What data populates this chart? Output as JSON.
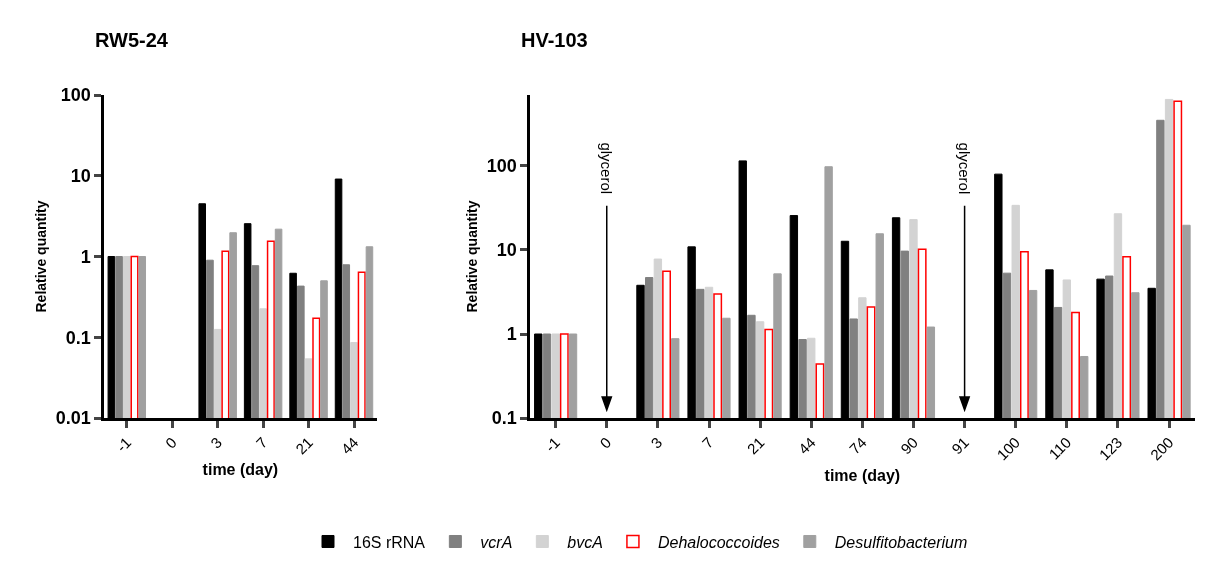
{
  "chart_data": [
    {
      "type": "bar",
      "title": "RW5-24",
      "xlabel": "time (day)",
      "ylabel": "Relative quantity",
      "categories": [
        "-1",
        "0",
        "3",
        "7",
        "21",
        "44"
      ],
      "series": [
        {
          "name": "16S rRNA",
          "color": "#000000",
          "values": [
            1,
            null,
            4.5,
            2.55,
            0.62,
            9.1
          ]
        },
        {
          "name": "vcrA",
          "color": "#808080",
          "values": [
            1,
            null,
            0.9,
            0.77,
            0.43,
            0.79
          ]
        },
        {
          "name": "bvcA",
          "color": "#d3d3d3",
          "values": [
            1,
            null,
            0.125,
            0.225,
            0.054,
            0.086
          ]
        },
        {
          "name": "Dehalococcoides",
          "color": "#ff0000",
          "values": [
            1,
            null,
            1.16,
            1.55,
            0.172,
            0.64
          ]
        },
        {
          "name": "Desulfitobacterium",
          "color": "#a0a0a0",
          "values": [
            1,
            null,
            1.97,
            2.18,
            0.5,
            1.32
          ]
        }
      ],
      "log": true,
      "ylim": [
        0.01,
        100
      ],
      "yticks": [
        0.01,
        0.1,
        1,
        10,
        100
      ],
      "legend": "bottom"
    },
    {
      "type": "bar",
      "title": "HV-103",
      "xlabel": "time (day)",
      "ylabel": "Relative quantity",
      "categories": [
        "-1",
        "0",
        "3",
        "7",
        "21",
        "44",
        "74",
        "90",
        "91",
        "100",
        "110",
        "123",
        "200"
      ],
      "series": [
        {
          "color": "#000000",
          "values": [
            1,
            null,
            3.8,
            10.9,
            115,
            25.7,
            12.7,
            24.2,
            null,
            80,
            5.8,
            4.5,
            3.5
          ]
        },
        {
          "color": "#808080",
          "values": [
            1,
            null,
            4.7,
            3.4,
            1.67,
            0.86,
            1.51,
            9.7,
            null,
            5.3,
            2.07,
            4.9,
            350
          ]
        },
        {
          "color": "#d3d3d3",
          "values": [
            1,
            null,
            7.8,
            3.6,
            1.4,
            0.89,
            2.7,
            23,
            null,
            34,
            4.4,
            27,
            620
          ]
        },
        {
          "color": "#ff0000",
          "values": [
            1,
            null,
            5.6,
            3.0,
            1.13,
            0.44,
            2.1,
            10.2,
            null,
            9.5,
            1.8,
            8.3,
            590
          ]
        },
        {
          "color": "#a0a0a0",
          "values": [
            1,
            null,
            0.88,
            1.54,
            5.2,
            98,
            15.6,
            1.21,
            null,
            3.3,
            0.54,
            3.1,
            19.7
          ]
        }
      ],
      "log": true,
      "ylim": [
        0.1,
        700
      ],
      "yticks": [
        0.1,
        1,
        10,
        100
      ],
      "ref_lines": [
        {
          "axis": "x",
          "value": "0",
          "label": "glycerol"
        },
        {
          "axis": "x",
          "value": "91",
          "label": "glycerol"
        }
      ]
    }
  ]
}
